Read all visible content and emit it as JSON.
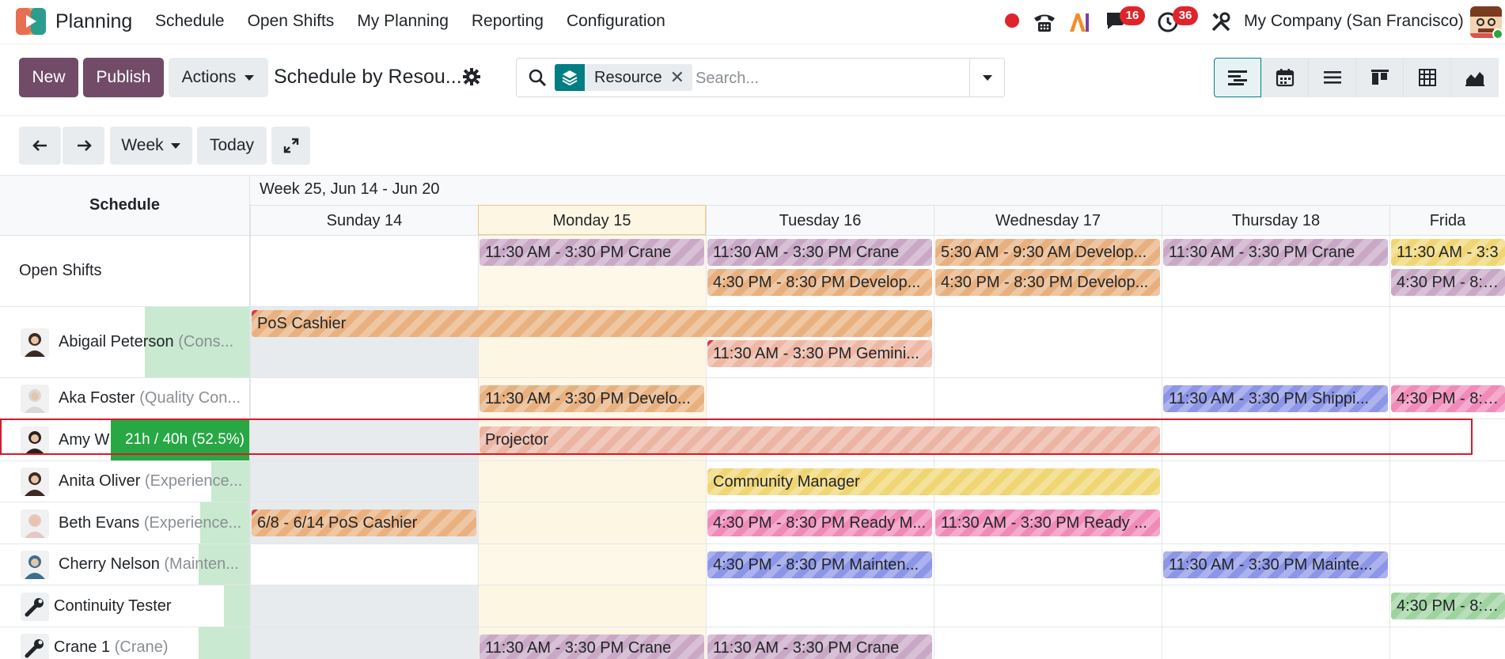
{
  "app": {
    "name": "Planning"
  },
  "menu": [
    "Schedule",
    "Open Shifts",
    "My Planning",
    "Reporting",
    "Configuration"
  ],
  "systray": {
    "chat_badge": "16",
    "activity_badge": "36",
    "company": "My Company (San Francisco)"
  },
  "control": {
    "new_label": "New",
    "publish_label": "Publish",
    "actions_label": "Actions",
    "view_title": "Schedule by Resou...",
    "facet_label": "Resource",
    "search_placeholder": "Search..."
  },
  "toolbar": {
    "scale_label": "Week",
    "today_label": "Today"
  },
  "gantt": {
    "row_header": "Schedule",
    "week_label": "Week 25, Jun 14 - Jun 20",
    "days": [
      "Sunday 14",
      "Monday 15",
      "Tuesday 16",
      "Wednesday 17",
      "Thursday 18",
      "Frida"
    ],
    "rows": [
      {
        "name": "Open Shifts",
        "role": ""
      },
      {
        "name": "Abigail Peterson",
        "role": " (Cons..."
      },
      {
        "name": "Aka Foster",
        "role": " (Quality Con..."
      },
      {
        "name": "Amy W",
        "role": "",
        "progress_text": "21h / 40h (52.5%)"
      },
      {
        "name": "Anita Oliver",
        "role": " (Experience..."
      },
      {
        "name": "Beth Evans",
        "role": " (Experience..."
      },
      {
        "name": "Cherry Nelson",
        "role": " (Mainten..."
      },
      {
        "name": "Continuity Tester",
        "role": ""
      },
      {
        "name": "Crane 1",
        "role": " (Crane)"
      }
    ],
    "pills": [
      "11:30 AM - 3:30 PM Crane",
      "11:30 AM - 3:30 PM Crane",
      "5:30 AM - 9:30 AM Develop...",
      "11:30 AM - 3:30 PM Crane",
      "11:30 AM - 3:3",
      "4:30 PM - 8:30 PM Develop...",
      "4:30 PM - 8:30 PM Develop...",
      "4:30 PM - 8:30",
      "PoS Cashier",
      "11:30 AM - 3:30 PM Gemini...",
      "11:30 AM - 3:30 PM Develo...",
      "11:30 AM - 3:30 PM Shippi...",
      "4:30 PM - 8:30",
      "Projector",
      "Community Manager",
      "6/8 - 6/14 PoS Cashier",
      "4:30 PM - 8:30 PM Ready M...",
      "11:30 AM - 3:30 PM Ready ...",
      "4:30 PM - 8:30 PM Mainten...",
      "11:30 AM - 3:30 PM Mainte...",
      "4:30 PM - 8:30",
      "11:30 AM - 3:30 PM Crane",
      "11:30 AM - 3:30 PM Crane"
    ]
  }
}
